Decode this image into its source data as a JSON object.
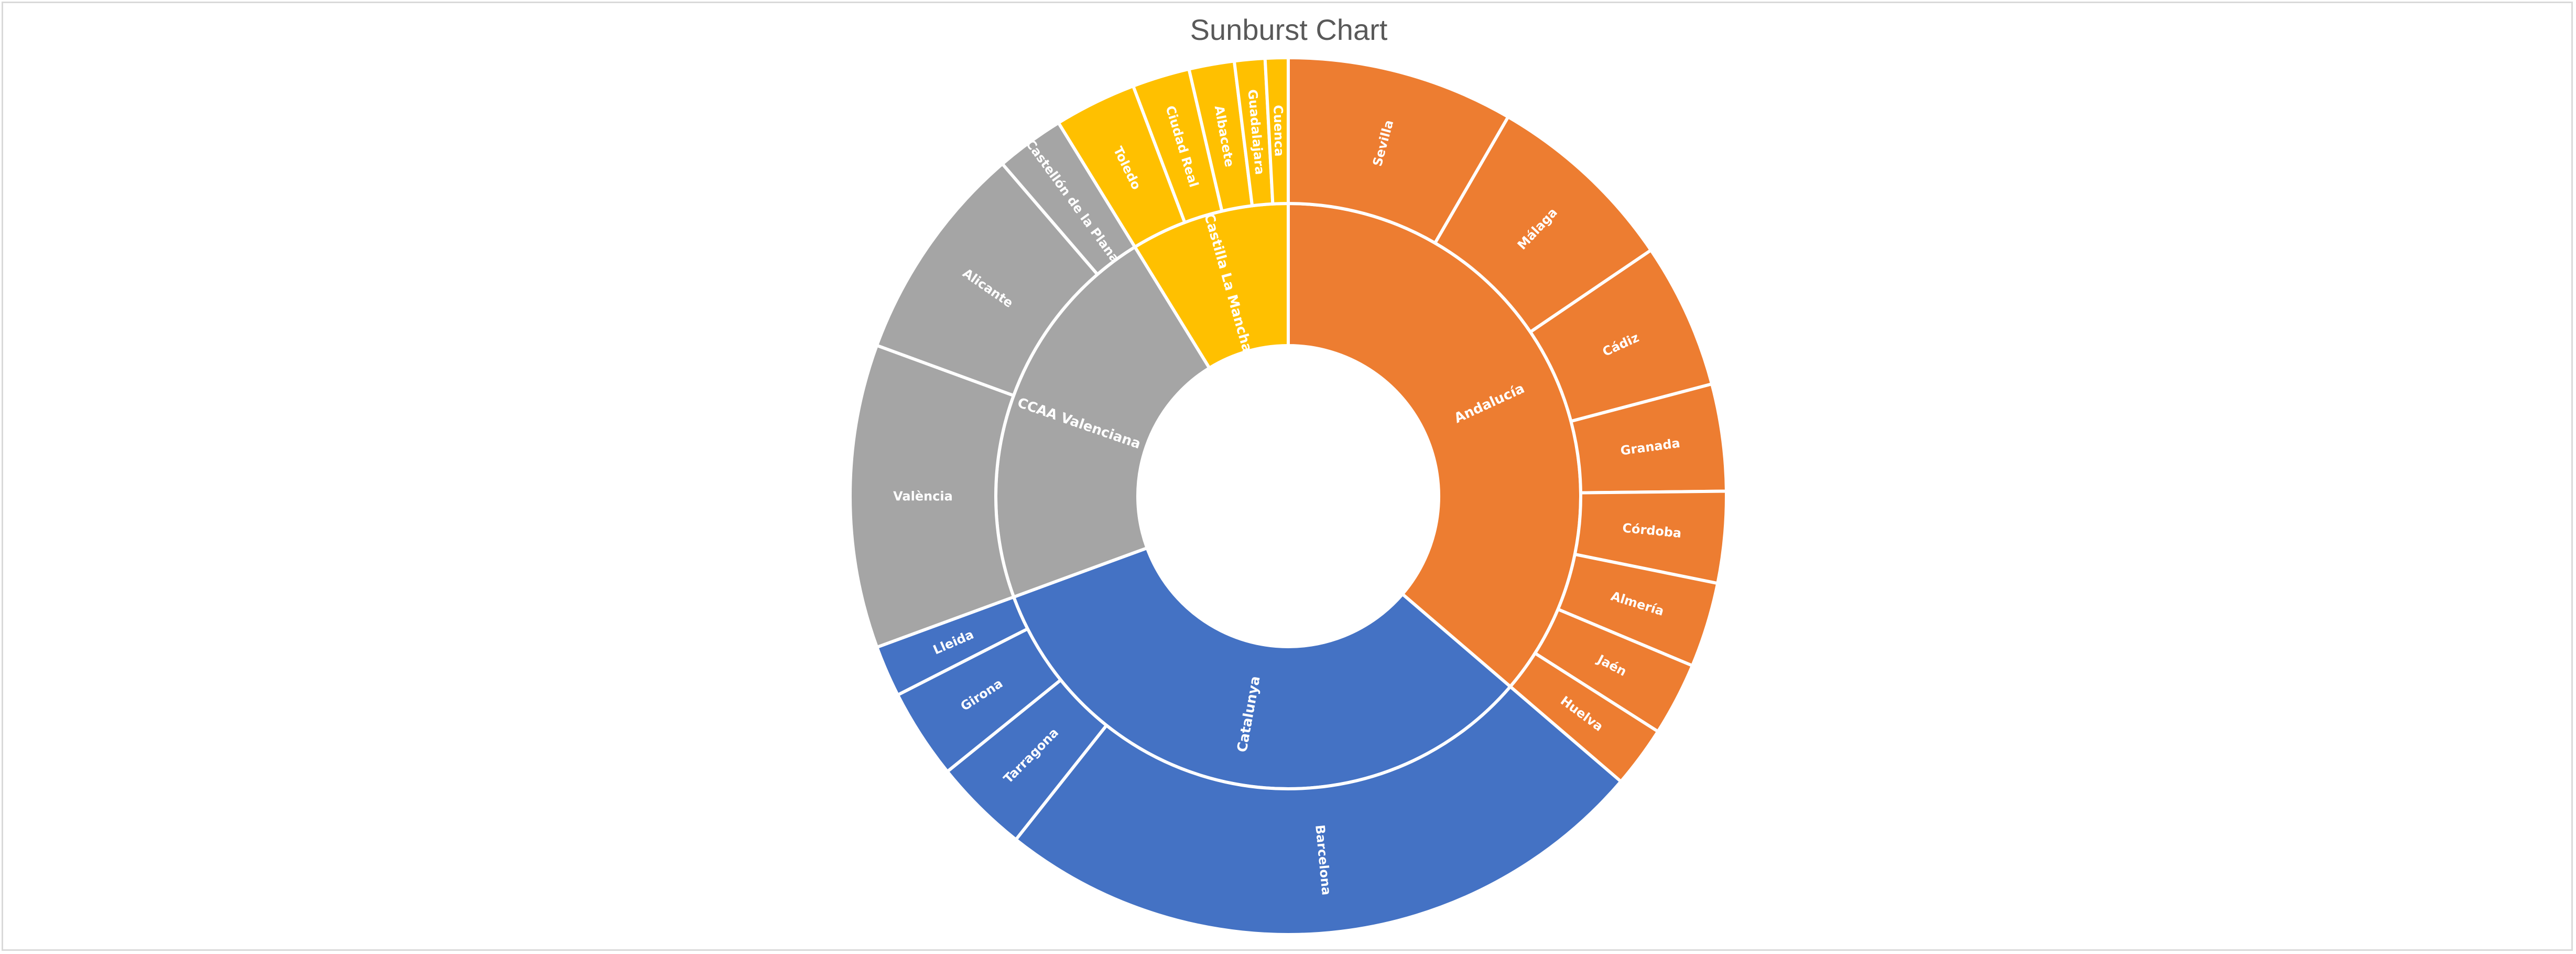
{
  "chart_data": {
    "type": "sunburst",
    "title": "Sunburst Chart",
    "colors": {
      "Andalucía": "#ED7D31",
      "Catalunya": "#4472C4",
      "CCAA Valenciana": "#A5A5A5",
      "Castilla La Mancha": "#FFC000",
      "separator": "#FFFFFF"
    },
    "hierarchy": [
      {
        "name": "Andalucía",
        "children": [
          {
            "name": "Sevilla",
            "value": 1943
          },
          {
            "name": "Málaga",
            "value": 1661
          },
          {
            "name": "Cádiz",
            "value": 1245
          },
          {
            "name": "Granada",
            "value": 914
          },
          {
            "name": "Córdoba",
            "value": 782
          },
          {
            "name": "Almería",
            "value": 727
          },
          {
            "name": "Jaén",
            "value": 627
          },
          {
            "name": "Huelva",
            "value": 525
          }
        ]
      },
      {
        "name": "Catalunya",
        "children": [
          {
            "name": "Barcelona",
            "value": 5665
          },
          {
            "name": "Tarragona",
            "value": 816
          },
          {
            "name": "Girona",
            "value": 771
          },
          {
            "name": "Lleida",
            "value": 439
          }
        ]
      },
      {
        "name": "CCAA Valenciana",
        "children": [
          {
            "name": "València",
            "value": 2597
          },
          {
            "name": "Alicante",
            "value": 1881
          },
          {
            "name": "Castellón de la Plana",
            "value": 587
          }
        ]
      },
      {
        "name": "Castilla La Mancha",
        "children": [
          {
            "name": "Toledo",
            "value": 703
          },
          {
            "name": "Ciudad Real",
            "value": 492
          },
          {
            "name": "Albacete",
            "value": 388
          },
          {
            "name": "Guadalajara",
            "value": 261
          },
          {
            "name": "Cuenca",
            "value": 196
          }
        ]
      }
    ]
  }
}
